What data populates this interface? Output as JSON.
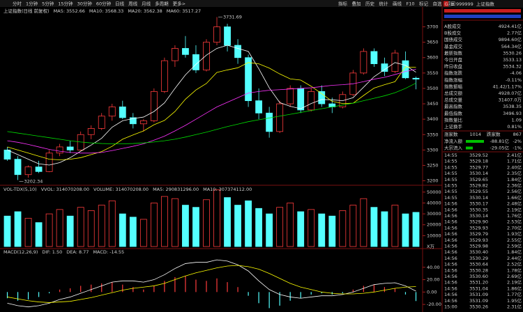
{
  "toolbar": {
    "periods": [
      "分时",
      "1分钟",
      "5分钟",
      "15分钟",
      "30分钟",
      "60分钟",
      "日线",
      "周线",
      "月线",
      "多周期",
      "更多>"
    ],
    "active": 6,
    "tools": [
      "指标",
      "叠加",
      "历史",
      "统计",
      "画线",
      "F10",
      "标记",
      "自选",
      "返回"
    ]
  },
  "chart_data": [
    {
      "type": "candlestick",
      "title": "上证指数(日线 前复权)",
      "open": [
        3300,
        3270,
        3220,
        3245,
        3230,
        3290,
        3310,
        3300,
        3350,
        3370,
        3410,
        3440,
        3405,
        3385,
        3395,
        3490,
        3590,
        3630,
        3610,
        3560,
        3650,
        3700,
        3640,
        3600,
        3460,
        3420,
        3360,
        3450,
        3500,
        3430,
        3490,
        3450,
        3440,
        3480,
        3550,
        3620,
        3580,
        3555,
        3590,
        3533.13
      ],
      "high": [
        3310,
        3280,
        3250,
        3265,
        3300,
        3320,
        3330,
        3360,
        3380,
        3420,
        3450,
        3460,
        3420,
        3400,
        3500,
        3600,
        3640,
        3670,
        3640,
        3660,
        3731.69,
        3710,
        3660,
        3610,
        3500,
        3440,
        3460,
        3510,
        3510,
        3500,
        3510,
        3470,
        3490,
        3560,
        3630,
        3630,
        3600,
        3625,
        3620,
        3538.35
      ],
      "low": [
        3265,
        3202.34,
        3210,
        3225,
        3228,
        3280,
        3290,
        3298,
        3335,
        3365,
        3395,
        3400,
        3370,
        3360,
        3390,
        3485,
        3570,
        3600,
        3550,
        3555,
        3640,
        3620,
        3580,
        3440,
        3400,
        3340,
        3355,
        3440,
        3420,
        3425,
        3440,
        3420,
        3435,
        3475,
        3545,
        3570,
        3540,
        3550,
        3530,
        3496.93
      ],
      "close": [
        3270,
        3220,
        3245,
        3230,
        3290,
        3310,
        3300,
        3350,
        3370,
        3410,
        3440,
        3405,
        3385,
        3395,
        3490,
        3590,
        3630,
        3610,
        3560,
        3650,
        3700,
        3640,
        3600,
        3460,
        3420,
        3360,
        3450,
        3500,
        3430,
        3490,
        3450,
        3440,
        3480,
        3550,
        3620,
        3580,
        3555,
        3615,
        3534.32,
        3530.26
      ],
      "up_color": "#ff3c3c",
      "down_color": "#54ffff",
      "series": [
        {
          "name": "MA5:",
          "current": 3552.66,
          "color": "#ffffff",
          "values": [
            3300,
            3285,
            3270,
            3255,
            3251,
            3259,
            3275,
            3296,
            3316,
            3338,
            3374,
            3395,
            3402,
            3407,
            3425,
            3453,
            3500,
            3544,
            3578,
            3608,
            3630,
            3640,
            3630,
            3620,
            3564,
            3502,
            3454,
            3442,
            3434,
            3451,
            3464,
            3463,
            3460,
            3470,
            3504,
            3538,
            3561,
            3584,
            3575,
            3552.66
          ]
        },
        {
          "name": "MA10:",
          "current": 3568.33,
          "color": "#ffff00",
          "values": [
            3310,
            3300,
            3290,
            3280,
            3270,
            3268,
            3270,
            3275,
            3285,
            3295,
            3312,
            3335,
            3349,
            3362,
            3382,
            3396,
            3425,
            3465,
            3495,
            3516,
            3552,
            3560,
            3567,
            3584,
            3580,
            3566,
            3547,
            3531,
            3527,
            3507,
            3483,
            3458,
            3451,
            3452,
            3477,
            3501,
            3512,
            3522,
            3570,
            3568.33
          ]
        },
        {
          "name": "MA20:",
          "current": 3562.38,
          "color": "#ff33ff",
          "values": [
            3330,
            3325,
            3318,
            3310,
            3302,
            3296,
            3292,
            3290,
            3290,
            3292,
            3298,
            3305,
            3312,
            3320,
            3332,
            3345,
            3362,
            3380,
            3400,
            3420,
            3440,
            3455,
            3470,
            3485,
            3490,
            3494,
            3496,
            3498,
            3500,
            3502,
            3506,
            3510,
            3512,
            3515,
            3522,
            3530,
            3536,
            3545,
            3555,
            3562.38
          ]
        },
        {
          "name": "MA60:",
          "current": 3517.27,
          "color": "#00e000",
          "values": [
            3360,
            3355,
            3350,
            3345,
            3340,
            3335,
            3330,
            3326,
            3323,
            3321,
            3320,
            3320,
            3321,
            3323,
            3326,
            3330,
            3335,
            3342,
            3350,
            3358,
            3367,
            3376,
            3384,
            3392,
            3398,
            3404,
            3410,
            3416,
            3422,
            3428,
            3434,
            3440,
            3446,
            3452,
            3460,
            3468,
            3476,
            3486,
            3500,
            3517.27
          ]
        }
      ],
      "ylim": [
        3190,
        3760
      ],
      "yticks": [
        3200,
        3250,
        3300,
        3350,
        3400,
        3450,
        3500,
        3550,
        3600,
        3650,
        3700
      ]
    },
    {
      "type": "bar",
      "title": "VOL-TDX(5,10)",
      "legend_items": [
        {
          "text": "VVOL: 314070208.00",
          "color": "#ffffff"
        },
        {
          "text": "VOLUME: 314070208.00",
          "color": "#ffff00"
        },
        {
          "text": "MA5: 290831296.00",
          "color": "#ff33ff"
        },
        {
          "text": "MA10: 307374112.00",
          "color": "#ff33ff"
        }
      ],
      "values": [
        28000,
        32000,
        26000,
        22000,
        30000,
        34000,
        28000,
        36000,
        33000,
        38000,
        42000,
        30000,
        27000,
        25000,
        40000,
        46000,
        44000,
        38000,
        36000,
        43000,
        52000,
        45000,
        38000,
        42000,
        35000,
        30000,
        36000,
        40000,
        32000,
        34000,
        30000,
        28000,
        33000,
        38000,
        44000,
        36000,
        32000,
        38000,
        30000,
        31407
      ],
      "ylim": [
        0,
        55000
      ],
      "yticks": [
        10000,
        20000,
        30000,
        40000,
        50000
      ],
      "unit": "X万"
    },
    {
      "type": "macd",
      "title": "MACD(12,26,9)",
      "legend_items": [
        {
          "text": "DIF: 1.50",
          "color": "#ffffff"
        },
        {
          "text": "DEA: 8.77",
          "color": "#ffff00"
        },
        {
          "text": "MACD: -14.55",
          "color": "#ff33ff"
        }
      ],
      "values": [
        -10,
        -14,
        -12,
        -8,
        -2,
        4,
        6,
        10,
        12,
        14,
        16,
        12,
        8,
        4,
        10,
        18,
        24,
        26,
        20,
        18,
        22,
        16,
        8,
        -6,
        -18,
        -26,
        -22,
        -14,
        -10,
        -4,
        -2,
        -4,
        -2,
        4,
        10,
        12,
        8,
        6,
        -4,
        -14.55
      ],
      "series": [
        {
          "name": "DIF",
          "color": "#ffffff",
          "values": [
            -18,
            -22,
            -24,
            -22,
            -18,
            -12,
            -8,
            -2,
            4,
            10,
            16,
            18,
            18,
            16,
            20,
            28,
            38,
            46,
            48,
            48,
            52,
            50,
            44,
            34,
            18,
            4,
            -4,
            -8,
            -10,
            -8,
            -6,
            -6,
            -4,
            0,
            6,
            12,
            14,
            15,
            10,
            1.5
          ]
        },
        {
          "name": "DEA",
          "color": "#ffff00",
          "values": [
            -8,
            -11,
            -14,
            -16,
            -17,
            -16,
            -15,
            -12,
            -9,
            -5,
            -1,
            3,
            6,
            8,
            10,
            14,
            20,
            26,
            31,
            35,
            39,
            42,
            43,
            41,
            37,
            30,
            22,
            14,
            8,
            4,
            0,
            -2,
            -3,
            -3,
            -2,
            0,
            3,
            6,
            8,
            8.77
          ]
        }
      ],
      "ylim": [
        -30,
        60
      ],
      "yticks": [
        {
          "value": -20,
          "label": "-20.00"
        },
        {
          "value": 0,
          "label": "0.00"
        },
        {
          "value": 20,
          "label": "20.00"
        },
        {
          "value": 40,
          "label": "40.00"
        }
      ]
    }
  ],
  "quote_panel": {
    "badges": [
      "G",
      "≡"
    ],
    "code": "999999",
    "name": "上证指数",
    "rows": [
      {
        "label": "A股成交",
        "value": "4924.41亿",
        "color": "#ffff40"
      },
      {
        "label": "B股成交",
        "value": "2.77亿",
        "color": "#ffff40"
      },
      {
        "label": "国债成交",
        "value": "9894.60亿",
        "color": "#ffff40"
      },
      {
        "label": "基金成交",
        "value": "564.34亿",
        "color": "#ffff40"
      },
      {
        "label": "最新指数",
        "value": "3530.26",
        "color": "#00e000"
      },
      {
        "label": "今日开盘",
        "value": "3533.13",
        "color": "#00e000"
      },
      {
        "label": "昨日收盘",
        "value": "3534.32",
        "color": "#e0e0e0"
      },
      {
        "label": "指数涨跌",
        "value": "-4.06",
        "color": "#00e000"
      },
      {
        "label": "指数涨幅",
        "value": "-0.11%",
        "color": "#00e000"
      },
      {
        "label": "指数振幅",
        "value": "41.42/1.17%",
        "color": "#e0e0e0"
      },
      {
        "label": "总成交额",
        "value": "4928.07亿",
        "color": "#ffff40"
      },
      {
        "label": "总成交量",
        "value": "31407.0万",
        "color": "#ffff40"
      },
      {
        "label": "最高指数",
        "value": "3538.35",
        "color": "#ff4040"
      },
      {
        "label": "最低指数",
        "value": "3496.93",
        "color": "#00e000"
      },
      {
        "label": "指数量比",
        "value": "1.09",
        "color": "#ff4040"
      },
      {
        "label": "上证换手",
        "value": "0.81%",
        "color": "#e0e0e0"
      }
    ],
    "breadth": {
      "up_label": "涨家数",
      "up": 1014,
      "down_label": "跌家数",
      "down": 867
    },
    "flows": [
      {
        "label": "净流入额",
        "value": "-88.81亿",
        "pct": "-2%"
      },
      {
        "label": "大宗流入",
        "value": "-29.05亿",
        "pct": "-1%"
      }
    ],
    "ticks": [
      [
        "14:55",
        "3529.52",
        "2.41亿"
      ],
      [
        "14:55",
        "3529.18",
        "1.71亿"
      ],
      [
        "14:55",
        "3529.77",
        "2.40亿"
      ],
      [
        "14:55",
        "3530.14",
        "2.35亿"
      ],
      [
        "14:55",
        "3529.65",
        "1.84亿"
      ],
      [
        "14:55",
        "3529.82",
        "2.36亿"
      ],
      [
        "14:55",
        "3529.55",
        "2.56亿"
      ],
      [
        "14:55",
        "3530.14",
        "1.66亿"
      ],
      [
        "14:56",
        "3530.17",
        "2.48亿"
      ],
      [
        "14:56",
        "3530.35",
        "2.19亿"
      ],
      [
        "14:56",
        "3530.14",
        "1.76亿"
      ],
      [
        "14:56",
        "3529.90",
        "2.53亿"
      ],
      [
        "14:56",
        "3529.93",
        "2.70亿"
      ],
      [
        "14:56",
        "3529.79",
        "1.93亿"
      ],
      [
        "14:56",
        "3529.93",
        "2.55亿"
      ],
      [
        "14:56",
        "3529.98",
        "2.59亿"
      ],
      [
        "14:56",
        "3530.40",
        "1.84亿"
      ],
      [
        "14:56",
        "3530.29",
        "2.44亿"
      ],
      [
        "14:56",
        "3530.64",
        "2.52亿"
      ],
      [
        "14:56",
        "3530.28",
        "1.78亿"
      ],
      [
        "14:56",
        "3530.60",
        "2.69亿"
      ],
      [
        "14:56",
        "3531.20",
        "2.19亿"
      ],
      [
        "14:56",
        "3531.04",
        "1.86亿"
      ],
      [
        "14:56",
        "3531.09",
        "1.77亿"
      ],
      [
        "14:56",
        "3531.09",
        "1.95亿"
      ],
      [
        "15:00",
        "3530.26",
        "2.31亿"
      ]
    ]
  }
}
